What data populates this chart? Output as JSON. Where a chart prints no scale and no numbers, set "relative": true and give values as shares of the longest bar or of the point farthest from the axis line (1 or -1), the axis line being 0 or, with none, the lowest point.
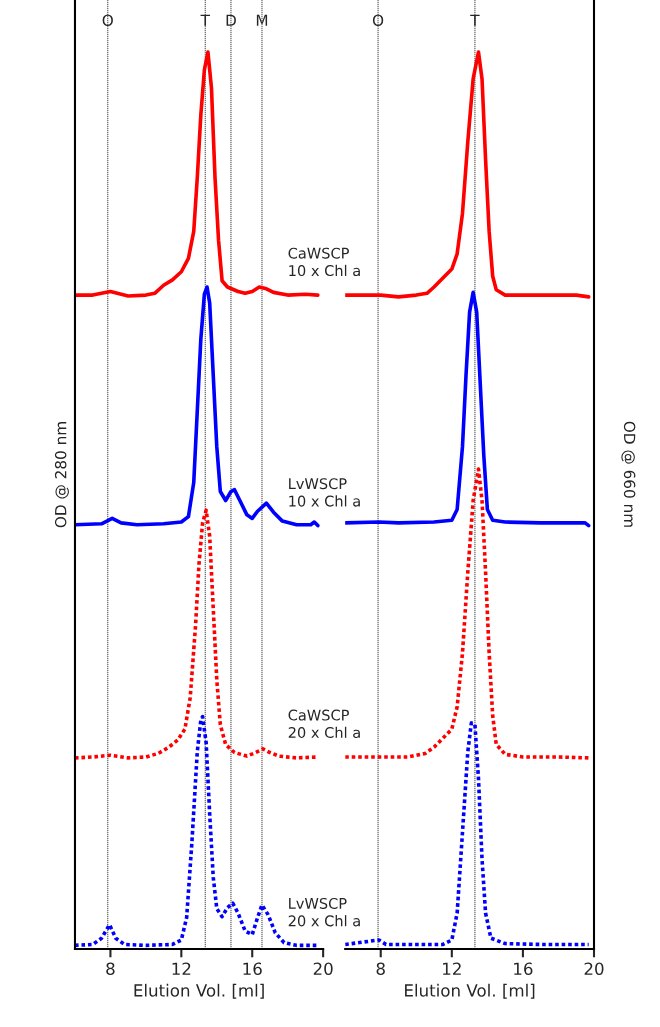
{
  "chart_data": [
    {
      "type": "line",
      "relative": true,
      "xlim": [
        6,
        20
      ],
      "xticks": [
        8,
        12,
        16,
        20
      ],
      "xlabel": "Elution Vol. [ml]",
      "ylabel": "OD @ 280 nm",
      "grid": false,
      "ref_lines": [
        {
          "axis": "x",
          "value": 7.85,
          "label": "O",
          "color": "#555555",
          "line_style": "dotted"
        },
        {
          "axis": "x",
          "value": 13.35,
          "label": "T",
          "color": "#555555",
          "line_style": "dotted"
        },
        {
          "axis": "x",
          "value": 14.8,
          "label": "D",
          "color": "#555555",
          "line_style": "dotted"
        },
        {
          "axis": "x",
          "value": 16.55,
          "label": "M",
          "color": "#555555",
          "line_style": "dotted"
        }
      ],
      "series": [
        {
          "name": "CaWSCP\n10 x Chl a",
          "color": "#ff0000",
          "line_style": "solid",
          "x": [
            6.0,
            7.0,
            8.0,
            9.0,
            10.0,
            10.5,
            11.0,
            11.5,
            12.0,
            12.4,
            12.7,
            12.9,
            13.1,
            13.3,
            13.5,
            13.7,
            13.9,
            14.1,
            14.3,
            14.6,
            15.2,
            15.6,
            16.0,
            16.4,
            16.8,
            17.2,
            18.0,
            19.0,
            19.7
          ],
          "values": [
            0.729,
            0.729,
            0.733,
            0.728,
            0.729,
            0.731,
            0.74,
            0.746,
            0.755,
            0.77,
            0.8,
            0.86,
            0.93,
            0.98,
            1.0,
            0.96,
            0.86,
            0.79,
            0.745,
            0.738,
            0.733,
            0.731,
            0.733,
            0.738,
            0.736,
            0.732,
            0.729,
            0.73,
            0.729
          ]
        },
        {
          "name": "LvWSCP\n10 x Chl a",
          "color": "#0000ff",
          "line_style": "solid",
          "x": [
            6.0,
            7.5,
            8.1,
            8.6,
            9.5,
            11.0,
            12.0,
            12.4,
            12.7,
            12.9,
            13.1,
            13.3,
            13.45,
            13.6,
            13.8,
            14.0,
            14.2,
            14.5,
            14.8,
            15.0,
            15.3,
            15.7,
            16.0,
            16.3,
            16.8,
            17.2,
            17.7,
            18.5,
            19.3,
            19.5,
            19.7
          ],
          "values": [
            0.473,
            0.474,
            0.48,
            0.475,
            0.473,
            0.474,
            0.476,
            0.482,
            0.52,
            0.6,
            0.68,
            0.73,
            0.738,
            0.72,
            0.64,
            0.56,
            0.51,
            0.5,
            0.51,
            0.512,
            0.5,
            0.484,
            0.48,
            0.488,
            0.497,
            0.487,
            0.477,
            0.473,
            0.473,
            0.476,
            0.472
          ]
        },
        {
          "name": "CaWSCP\n20 x Chl a",
          "color": "#ff0000",
          "line_style": "dotted",
          "x": [
            6.0,
            7.0,
            8.0,
            9.0,
            10.0,
            10.7,
            11.3,
            11.8,
            12.2,
            12.5,
            12.8,
            13.0,
            13.2,
            13.4,
            13.6,
            13.8,
            14.0,
            14.2,
            14.5,
            15.0,
            15.7,
            16.2,
            16.6,
            17.0,
            17.5,
            18.5,
            19.7
          ],
          "values": [
            0.213,
            0.214,
            0.216,
            0.213,
            0.214,
            0.218,
            0.225,
            0.233,
            0.245,
            0.28,
            0.36,
            0.43,
            0.475,
            0.489,
            0.46,
            0.38,
            0.3,
            0.25,
            0.228,
            0.219,
            0.215,
            0.219,
            0.223,
            0.219,
            0.215,
            0.213,
            0.214
          ]
        },
        {
          "name": "LvWSCP\n20 x Chl a",
          "color": "#0000ff",
          "line_style": "dotted",
          "x": [
            6.0,
            7.0,
            7.5,
            7.95,
            8.3,
            8.8,
            10.0,
            11.5,
            12.0,
            12.3,
            12.6,
            12.9,
            13.1,
            13.2,
            13.4,
            13.6,
            13.8,
            14.0,
            14.3,
            14.6,
            14.9,
            15.2,
            15.6,
            16.0,
            16.3,
            16.55,
            16.9,
            17.3,
            17.8,
            18.5,
            19.7
          ],
          "values": [
            0.004,
            0.005,
            0.012,
            0.027,
            0.012,
            0.005,
            0.004,
            0.005,
            0.01,
            0.035,
            0.12,
            0.22,
            0.255,
            0.259,
            0.23,
            0.15,
            0.08,
            0.045,
            0.036,
            0.046,
            0.051,
            0.04,
            0.02,
            0.016,
            0.035,
            0.049,
            0.038,
            0.018,
            0.007,
            0.004,
            0.004
          ]
        }
      ]
    },
    {
      "type": "line",
      "relative": true,
      "xlim": [
        6,
        20
      ],
      "xticks": [
        8,
        12,
        16,
        20
      ],
      "xlabel": "Elution Vol. [ml]",
      "y2label": "OD @ 660 nm",
      "grid": false,
      "ref_lines": [
        {
          "axis": "x",
          "value": 7.85,
          "label": "O",
          "color": "#555555",
          "line_style": "dotted"
        },
        {
          "axis": "x",
          "value": 13.3,
          "label": "T",
          "color": "#555555",
          "line_style": "dotted"
        }
      ],
      "series": [
        {
          "color": "#ff0000",
          "line_style": "solid",
          "x": [
            6.0,
            7.5,
            8.0,
            9.0,
            10.0,
            10.6,
            11.0,
            11.5,
            12.0,
            12.3,
            12.6,
            12.9,
            13.2,
            13.5,
            13.7,
            13.9,
            14.1,
            14.3,
            14.5,
            15.0,
            16.0,
            17.0,
            18.0,
            19.0,
            19.7
          ],
          "values": [
            0.729,
            0.729,
            0.729,
            0.727,
            0.729,
            0.731,
            0.738,
            0.748,
            0.758,
            0.775,
            0.82,
            0.9,
            0.97,
            1.0,
            0.97,
            0.88,
            0.8,
            0.75,
            0.735,
            0.729,
            0.729,
            0.729,
            0.729,
            0.729,
            0.727
          ]
        },
        {
          "color": "#0000ff",
          "line_style": "solid",
          "x": [
            6.0,
            7.9,
            9.0,
            11.0,
            12.0,
            12.3,
            12.6,
            12.8,
            13.0,
            13.2,
            13.4,
            13.6,
            13.8,
            14.0,
            14.3,
            15.0,
            17.0,
            19.0,
            19.5,
            19.7
          ],
          "values": [
            0.475,
            0.476,
            0.475,
            0.476,
            0.478,
            0.49,
            0.56,
            0.64,
            0.71,
            0.732,
            0.71,
            0.63,
            0.55,
            0.49,
            0.478,
            0.476,
            0.475,
            0.475,
            0.475,
            0.472
          ]
        },
        {
          "color": "#ff0000",
          "line_style": "dotted",
          "x": [
            6.0,
            8.0,
            9.5,
            10.5,
            11.0,
            11.5,
            12.0,
            12.3,
            12.6,
            12.9,
            13.2,
            13.5,
            13.7,
            13.9,
            14.1,
            14.3,
            14.5,
            15.0,
            16.0,
            18.0,
            19.7
          ],
          "values": [
            0.214,
            0.214,
            0.214,
            0.218,
            0.225,
            0.235,
            0.245,
            0.27,
            0.33,
            0.42,
            0.5,
            0.535,
            0.5,
            0.42,
            0.33,
            0.26,
            0.228,
            0.217,
            0.214,
            0.214,
            0.213
          ]
        },
        {
          "color": "#0000ff",
          "line_style": "dotted",
          "x": [
            6.0,
            7.9,
            8.3,
            10.0,
            11.5,
            12.0,
            12.3,
            12.6,
            12.9,
            13.1,
            13.3,
            13.5,
            13.7,
            13.9,
            14.2,
            15.0,
            17.0,
            19.7
          ],
          "values": [
            0.005,
            0.01,
            0.005,
            0.005,
            0.005,
            0.01,
            0.04,
            0.13,
            0.22,
            0.252,
            0.25,
            0.19,
            0.1,
            0.04,
            0.012,
            0.006,
            0.005,
            0.005
          ]
        }
      ]
    }
  ]
}
